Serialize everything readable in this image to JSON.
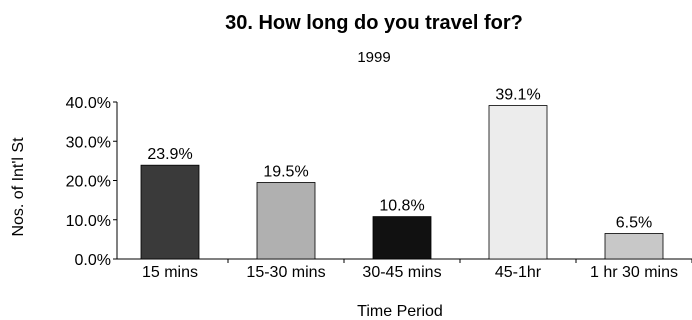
{
  "chart_data": {
    "type": "bar",
    "title": "30. How long do you travel for?",
    "subtitle": "1999",
    "xlabel": "Time Period",
    "ylabel": "Nos. of Int'l St",
    "categories": [
      "15 mins",
      "15-30 mins",
      "30-45 mins",
      "45-1hr",
      "1 hr 30 mins"
    ],
    "values": [
      23.9,
      19.5,
      10.8,
      39.1,
      6.5
    ],
    "data_labels": [
      "23.9%",
      "19.5%",
      "10.8%",
      "39.1%",
      "6.5%"
    ],
    "bar_colors": [
      "#3a3a3a",
      "#b0b0b0",
      "#111111",
      "#ececec",
      "#c8c8c8"
    ],
    "ylim": [
      0,
      40
    ],
    "yticks": [
      0,
      10,
      20,
      30,
      40
    ],
    "ytick_labels": [
      "0.0%",
      "10.0%",
      "20.0%",
      "30.0%",
      "40.0%"
    ],
    "grid": false,
    "legend": "none"
  }
}
